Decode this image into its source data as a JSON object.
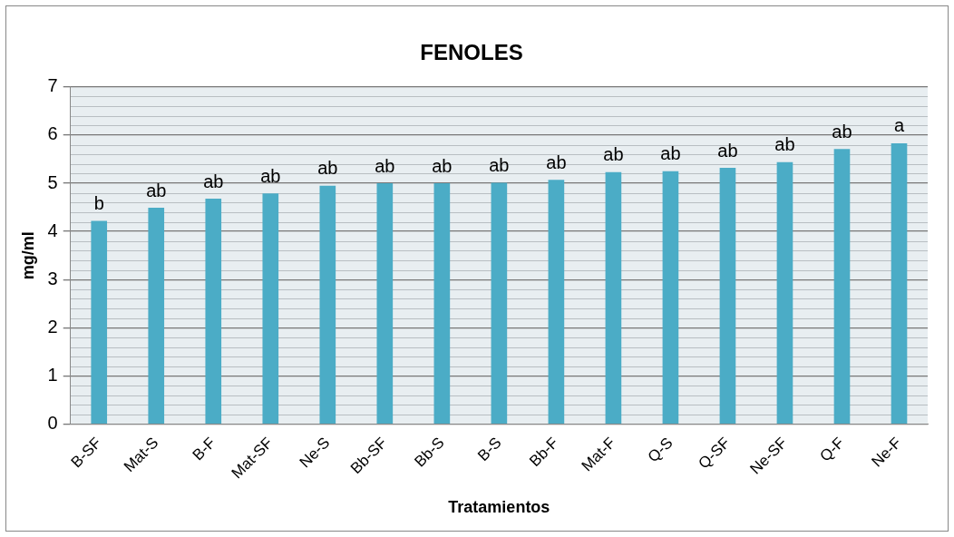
{
  "chart_data": {
    "type": "bar",
    "title": "FENOLES",
    "xlabel": "Tratamientos",
    "ylabel": "mg/ml",
    "categories": [
      "B-SF",
      "Mat-S",
      "B-F",
      "Mat-SF",
      "Ne-S",
      "Bb-SF",
      "Bb-S",
      "B-S",
      "Bb-F",
      "Mat-F",
      "Q-S",
      "Q-SF",
      "Ne-SF",
      "Q-F",
      "Ne-F"
    ],
    "values": [
      4.22,
      4.49,
      4.68,
      4.79,
      4.95,
      5.0,
      5.0,
      5.01,
      5.07,
      5.23,
      5.25,
      5.32,
      5.44,
      5.71,
      5.83
    ],
    "color": "#4bacc6",
    "ylim": [
      0,
      7
    ],
    "yticks": [
      0,
      1,
      2,
      3,
      4,
      5,
      6,
      7
    ],
    "grid": "y",
    "legend": false,
    "annotations": [
      {
        "text": "b",
        "x": "B-SF",
        "y": 4.22
      },
      {
        "text": "ab",
        "x": "Mat-S",
        "y": 4.49
      },
      {
        "text": "ab",
        "x": "B-F",
        "y": 4.68
      },
      {
        "text": "ab",
        "x": "Mat-SF",
        "y": 4.79
      },
      {
        "text": "ab",
        "x": "Ne-S",
        "y": 4.95
      },
      {
        "text": "ab",
        "x": "Bb-SF",
        "y": 5.0
      },
      {
        "text": "ab",
        "x": "Bb-S",
        "y": 5.0
      },
      {
        "text": "ab",
        "x": "B-S",
        "y": 5.01
      },
      {
        "text": "ab",
        "x": "Bb-F",
        "y": 5.07
      },
      {
        "text": "ab",
        "x": "Mat-F",
        "y": 5.23
      },
      {
        "text": "ab",
        "x": "Q-S",
        "y": 5.25
      },
      {
        "text": "ab",
        "x": "Q-SF",
        "y": 5.32
      },
      {
        "text": "ab",
        "x": "Ne-SF",
        "y": 5.44
      },
      {
        "text": "ab",
        "x": "Q-F",
        "y": 5.71
      },
      {
        "text": "a",
        "x": "Ne-F",
        "y": 5.83
      }
    ]
  }
}
